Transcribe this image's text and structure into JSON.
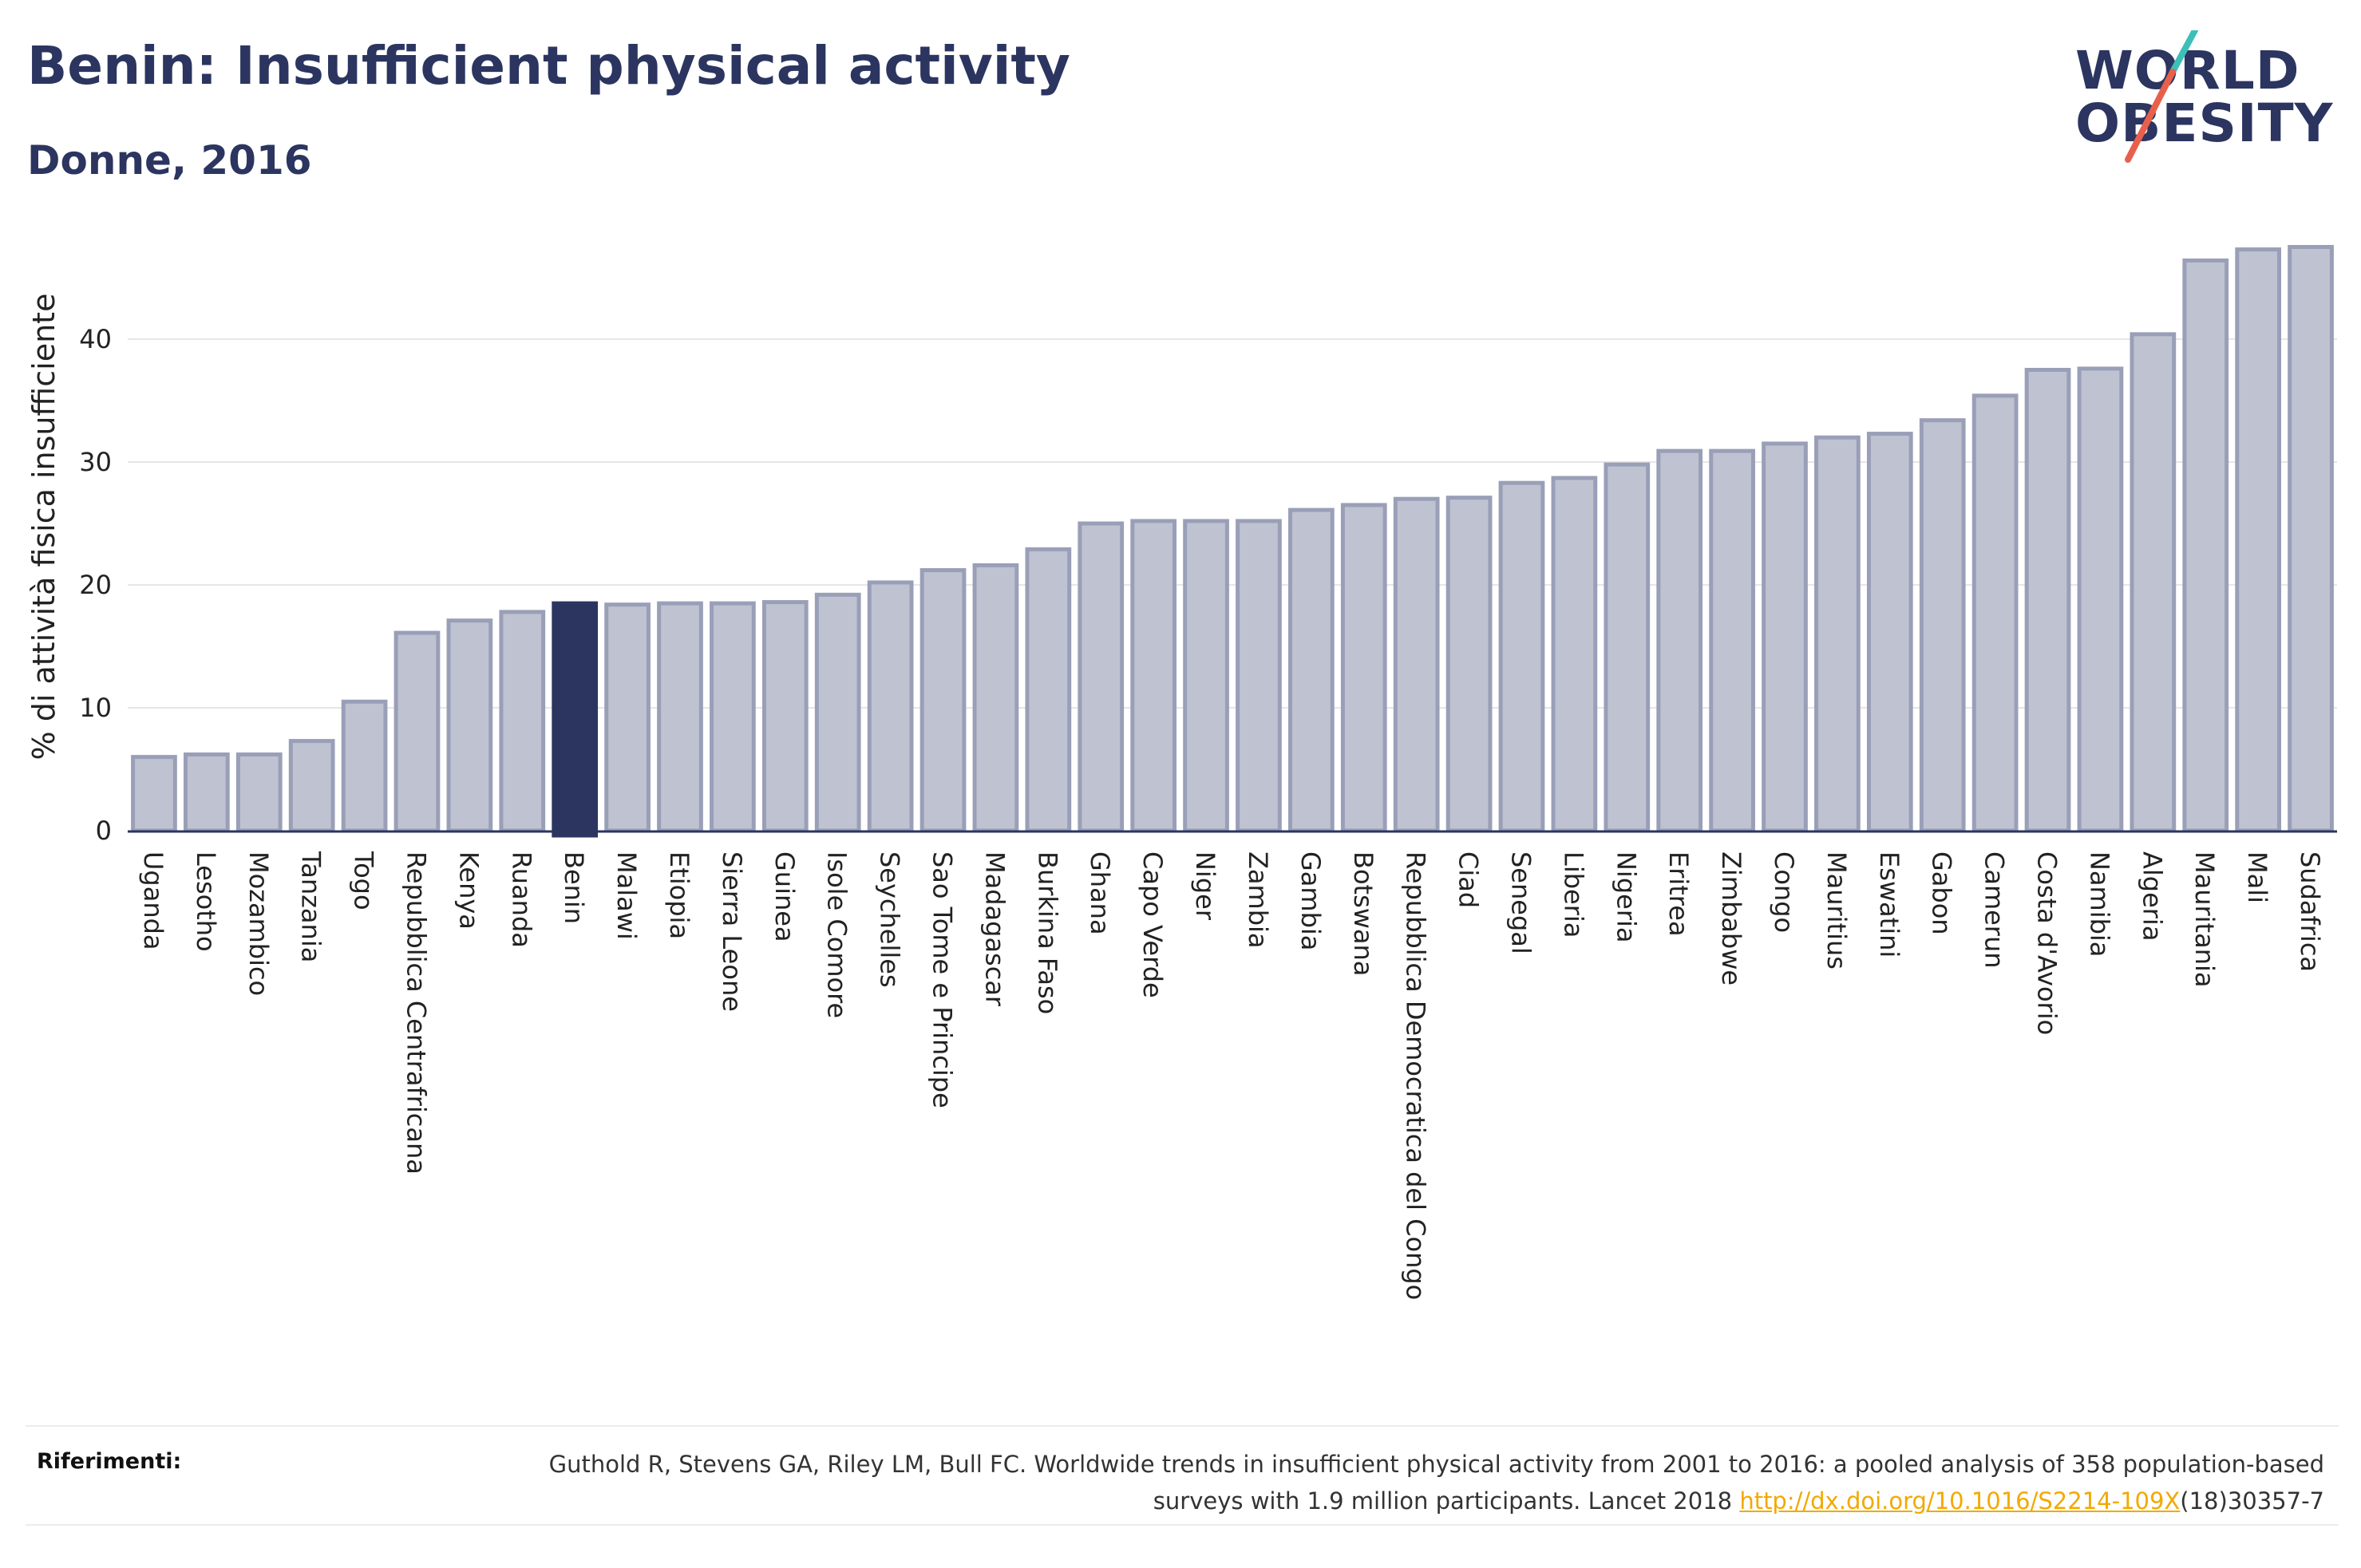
{
  "header": {
    "title": "Benin: Insufficient physical activity",
    "subtitle": "Donne, 2016"
  },
  "logo": {
    "line1": "WORLD",
    "line2": "OBESITY",
    "slash_colors": [
      "#3dbfb8",
      "#e8604c"
    ]
  },
  "colors": {
    "bar": "#bfc2d0",
    "bar_border": "#9a9fb8",
    "highlight": "#2b3560",
    "gridline": "#e6e6e6",
    "axis": "#2b3560"
  },
  "chart_data": {
    "type": "bar",
    "ylabel": "% di attività fisica insufficiente",
    "ylim": [
      0,
      48
    ],
    "yticks": [
      0,
      10,
      20,
      30,
      40
    ],
    "highlight": "Benin",
    "grid": true,
    "categories": [
      "Uganda",
      "Lesotho",
      "Mozambico",
      "Tanzania",
      "Togo",
      "Repubblica Centrafricana",
      "Kenya",
      "Ruanda",
      "Benin",
      "Malawi",
      "Etiopia",
      "Sierra Leone",
      "Guinea",
      "Isole Comore",
      "Seychelles",
      "Sao Tome e Principe",
      "Madagascar",
      "Burkina Faso",
      "Ghana",
      "Capo Verde",
      "Niger",
      "Zambia",
      "Gambia",
      "Botswana",
      "Repubblica Democratica del Congo",
      "Ciad",
      "Senegal",
      "Liberia",
      "Nigeria",
      "Eritrea",
      "Zimbabwe",
      "Congo",
      "Mauritius",
      "Eswatini",
      "Gabon",
      "Camerun",
      "Costa d'Avorio",
      "Namibia",
      "Algeria",
      "Mauritania",
      "Mali",
      "Sudafrica"
    ],
    "values": [
      6.0,
      6.2,
      6.2,
      7.3,
      10.5,
      16.1,
      17.1,
      17.8,
      18.5,
      18.4,
      18.5,
      18.5,
      18.6,
      19.2,
      20.2,
      21.2,
      21.6,
      22.9,
      25.0,
      25.2,
      25.2,
      25.2,
      26.1,
      26.5,
      27.0,
      27.1,
      28.3,
      28.7,
      29.8,
      30.9,
      30.9,
      31.5,
      32.0,
      32.3,
      33.4,
      35.4,
      37.5,
      37.6,
      40.4,
      46.4,
      47.3,
      47.5
    ]
  },
  "references": {
    "label": "Riferimenti:",
    "text_before": "Guthold R, Stevens GA, Riley LM, Bull FC. Worldwide trends in insufficient physical activity from 2001 to 2016: a pooled analysis of 358 population-based surveys with 1.9 million participants. Lancet 2018 ",
    "link": "http://dx.doi.org/10.1016/S2214-109X",
    "text_after": "(18)30357-7"
  }
}
